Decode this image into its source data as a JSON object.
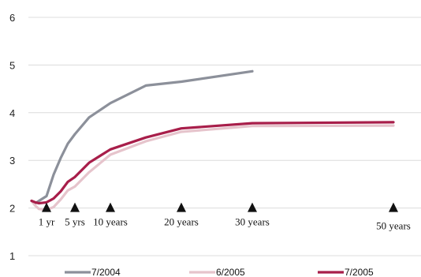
{
  "chart_data": {
    "type": "line",
    "ylim": [
      1,
      6
    ],
    "y_ticks": [
      1,
      2,
      3,
      4,
      5,
      6
    ],
    "grid": "horizontal",
    "legend_placement": "bottom",
    "series": [
      {
        "name": "7/2004",
        "color": "#8c909a",
        "x": [
          0,
          0.25,
          0.5,
          1,
          2,
          3,
          4,
          5,
          7,
          10,
          15,
          20,
          30
        ],
        "y": [
          2.15,
          2.1,
          2.15,
          2.25,
          2.7,
          3.05,
          3.35,
          3.55,
          3.9,
          4.2,
          4.57,
          4.65,
          4.87
        ]
      },
      {
        "name": "6/2005",
        "color": "#e6c4cc",
        "x": [
          0,
          0.25,
          0.5,
          1,
          2,
          3,
          4,
          5,
          7,
          10,
          15,
          20,
          30,
          50
        ],
        "y": [
          2.15,
          2.05,
          1.98,
          1.96,
          2.02,
          2.18,
          2.37,
          2.45,
          2.75,
          3.12,
          3.4,
          3.6,
          3.72,
          3.73
        ]
      },
      {
        "name": "7/2005",
        "color": "#a81e4a",
        "x": [
          0,
          0.25,
          0.5,
          1,
          2,
          3,
          4,
          5,
          7,
          10,
          15,
          20,
          30,
          50
        ],
        "y": [
          2.15,
          2.12,
          2.1,
          2.12,
          2.2,
          2.35,
          2.55,
          2.65,
          2.95,
          3.23,
          3.48,
          3.67,
          3.78,
          3.8
        ]
      }
    ],
    "markers": [
      {
        "x": 1,
        "label": "1 yr"
      },
      {
        "x": 5,
        "label": "5 yrs"
      },
      {
        "x": 10,
        "label": "10 years"
      },
      {
        "x": 20,
        "label": "20 years"
      },
      {
        "x": 30,
        "label": "30 years"
      },
      {
        "x": 50,
        "label": "50 years"
      }
    ]
  }
}
